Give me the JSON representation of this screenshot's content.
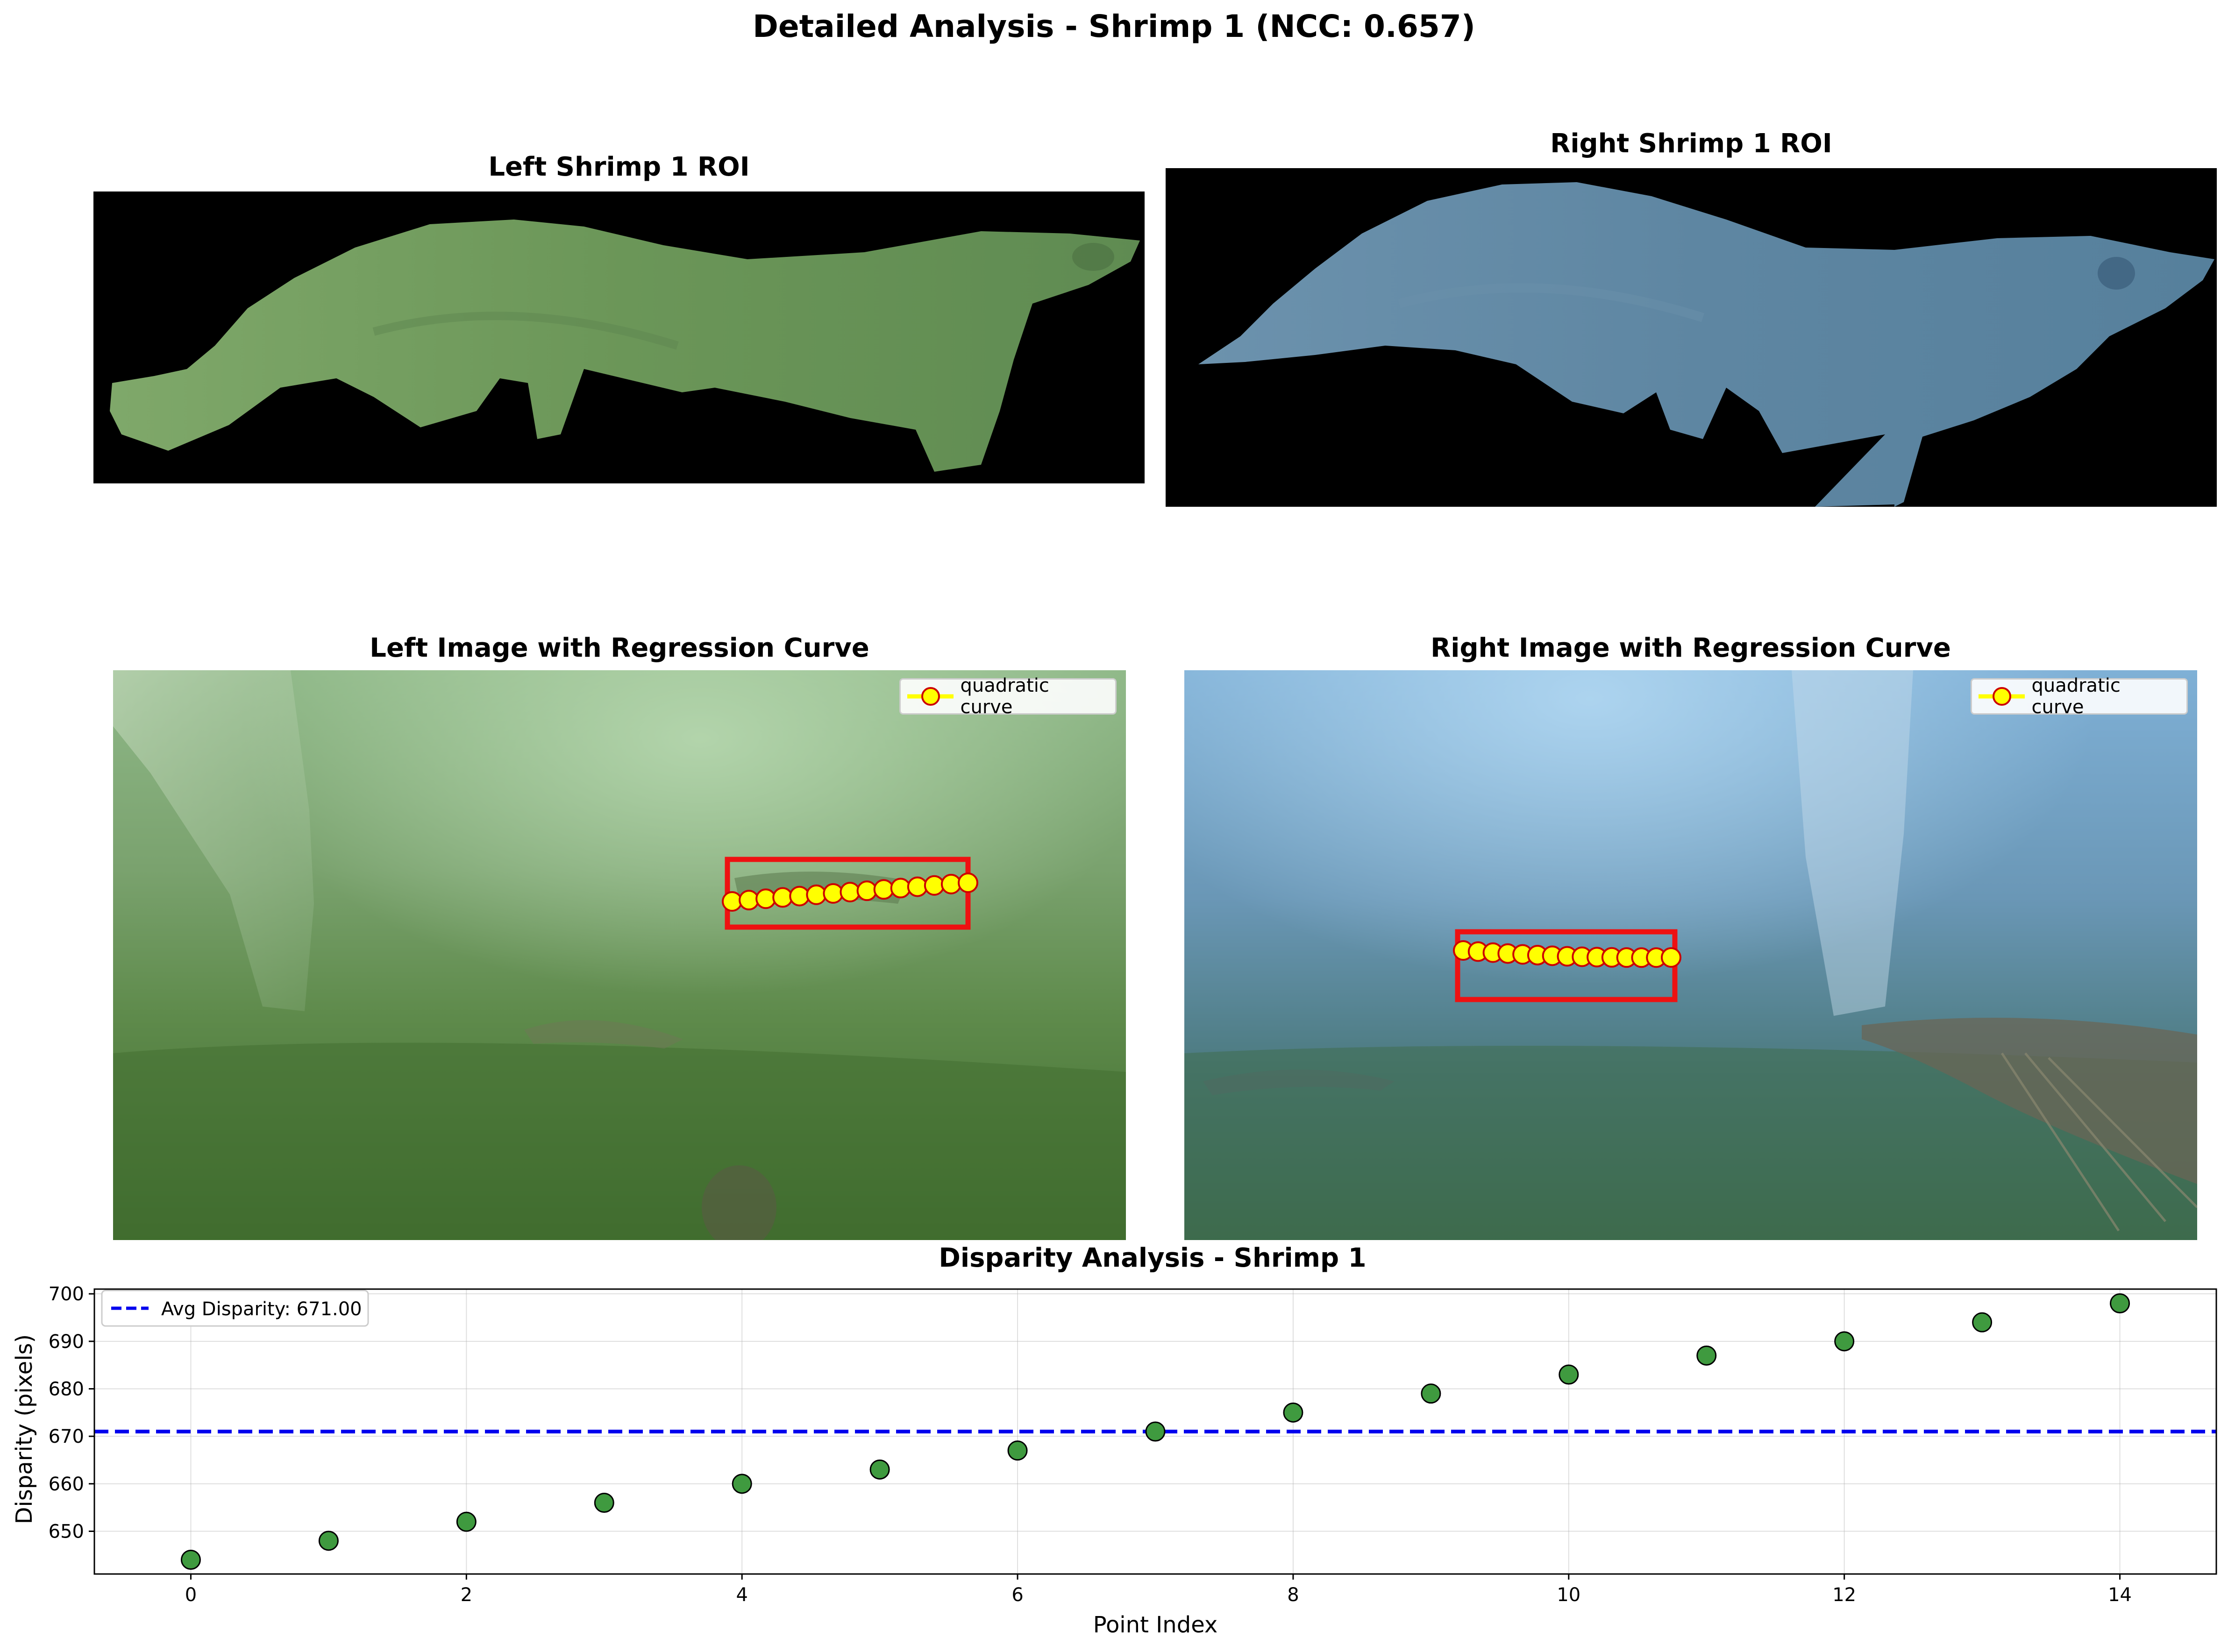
{
  "figure": {
    "title": "Detailed Analysis - Shrimp 1 (NCC: 0.657)"
  },
  "panels": {
    "left_roi": {
      "title": "Left Shrimp 1 ROI"
    },
    "right_roi": {
      "title": "Right Shrimp 1 ROI"
    },
    "left_image": {
      "title": "Left Image with Regression Curve",
      "legend": "quadratic curve"
    },
    "right_image": {
      "title": "Right Image with Regression Curve",
      "legend": "quadratic curve"
    }
  },
  "colors": {
    "left_tint": "#6f9a5c",
    "right_tint": "#5f86a3",
    "box": "#ee1111",
    "marker_fill": "#ffff00",
    "marker_edge": "#cc0000",
    "scatter_fill": "#3f9a3f",
    "avg_line": "#0000ee"
  },
  "chart_data": {
    "type": "scatter",
    "title": "Disparity Analysis - Shrimp 1",
    "xlabel": "Point Index",
    "ylabel": "Disparity (pixels)",
    "x": [
      0,
      1,
      2,
      3,
      4,
      5,
      6,
      7,
      8,
      9,
      10,
      11,
      12,
      13,
      14
    ],
    "y": [
      644,
      648,
      652,
      656,
      660,
      663,
      667,
      671,
      675,
      679,
      683,
      687,
      690,
      694,
      698
    ],
    "xlim": [
      -0.7,
      14.7
    ],
    "ylim": [
      641,
      701
    ],
    "xticks": [
      0,
      2,
      4,
      6,
      8,
      10,
      12,
      14
    ],
    "yticks": [
      650,
      660,
      670,
      680,
      690,
      700
    ],
    "avg_line": {
      "value": 671.0,
      "label": "Avg Disparity: 671.00"
    },
    "grid": true,
    "legend": "top-left"
  }
}
